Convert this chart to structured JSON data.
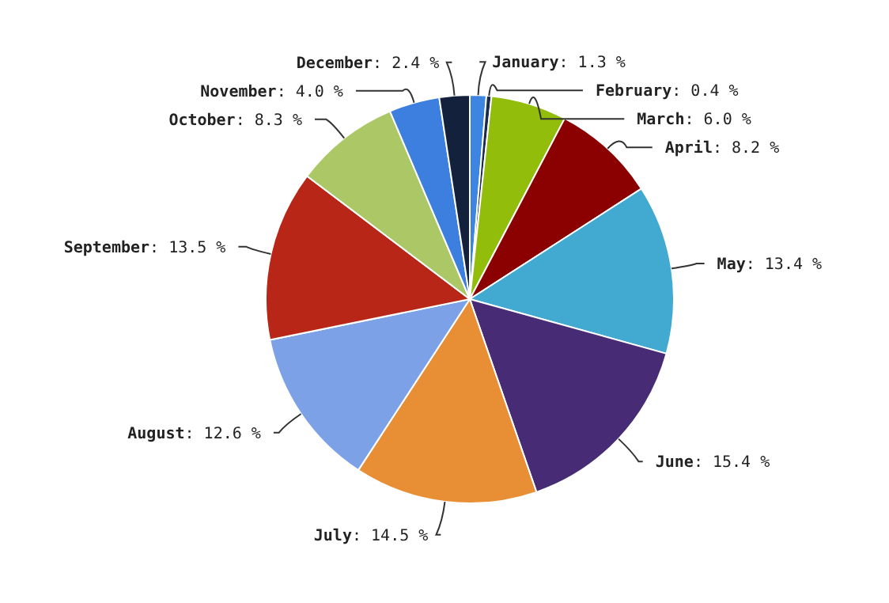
{
  "chart_data": {
    "type": "pie",
    "categories": [
      "January",
      "February",
      "March",
      "April",
      "May",
      "June",
      "July",
      "August",
      "September",
      "October",
      "November",
      "December"
    ],
    "values": [
      1.3,
      0.4,
      6.0,
      8.2,
      13.4,
      15.4,
      14.5,
      12.6,
      13.5,
      8.3,
      4.0,
      2.4
    ],
    "value_labels": [
      ": 1.3 %",
      ": 0.4 %",
      ": 6.0 %",
      ": 8.2 %",
      ": 13.4 %",
      ": 15.4 %",
      ": 14.5 %",
      ": 12.6 %",
      ": 13.5 %",
      ": 8.3 %",
      ": 4.0 %",
      ": 2.4 %"
    ],
    "colors": [
      "#3d85e0",
      "#1a2a4a",
      "#92bd0a",
      "#8b0000",
      "#42a9d1",
      "#472c75",
      "#e88e35",
      "#7da1e6",
      "#b82617",
      "#abc766",
      "#3d7fde",
      "#14213d"
    ]
  }
}
